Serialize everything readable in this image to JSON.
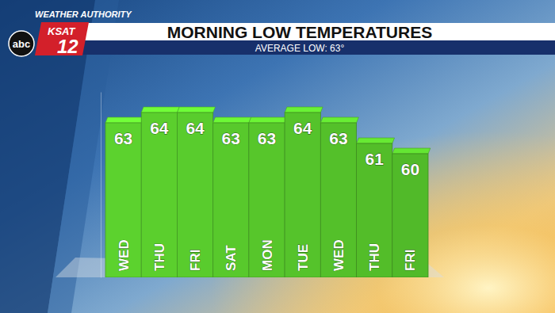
{
  "chart_data": {
    "type": "bar",
    "title": "MORNING LOW TEMPERATURES",
    "subtitle": "AVERAGE LOW: 63°",
    "categories": [
      "WED",
      "THU",
      "FRI",
      "SAT",
      "MON",
      "TUE",
      "WED",
      "THU",
      "FRI"
    ],
    "values": [
      63,
      64,
      64,
      63,
      63,
      64,
      63,
      61,
      60
    ],
    "color": "#5cd22e",
    "ylim": [
      48,
      66
    ],
    "yticks": [],
    "grid": false,
    "data_labels": true,
    "tick_labels": "x"
  },
  "branding": [
    "WEATHER AUTHORITY",
    "KSAT",
    "12",
    "abc"
  ]
}
